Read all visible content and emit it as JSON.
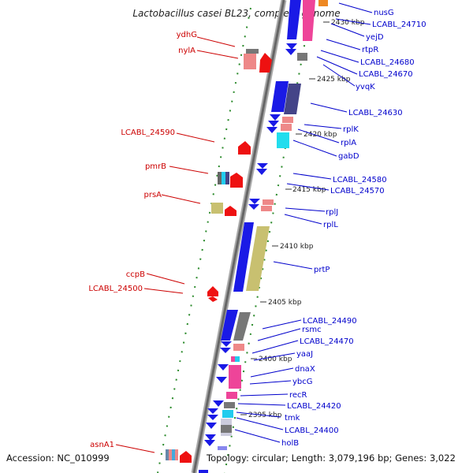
{
  "title": "Lactobacillus casei BL23, complete genome",
  "footer": {
    "accession": "Accession: NC_010999",
    "topology": "Topology: circular; Length: 3,079,196 bp; Genes: 3,022"
  },
  "kbp_labels": [
    "2430 kbp",
    "2425 kbp",
    "2420 kbp",
    "2415 kbp",
    "2410 kbp",
    "2405 kbp",
    "2400 kbp",
    "2395 kbp"
  ],
  "left_labels": [
    "ydhG",
    "nylA",
    "LCABL_24590",
    "pmrB",
    "prsA",
    "ccpB",
    "LCABL_24500",
    "asnA1"
  ],
  "right_labels": [
    "nusG",
    "LCABL_24710",
    "yejD",
    "rtpR",
    "LCABL_24680",
    "LCABL_24670",
    "yvqK",
    "LCABL_24630",
    "rplK",
    "rplA",
    "gabD",
    "LCABL_24580",
    "LCABL_24570",
    "rplJ",
    "rplL",
    "prtP",
    "LCABL_24490",
    "rsmc",
    "LCABL_24470",
    "yaaJ",
    "dnaX",
    "ybcG",
    "recR",
    "LCABL_24420",
    "tmk",
    "LCABL_24400",
    "holB"
  ],
  "colors": {
    "label_left": "#cc0000",
    "label_right": "#0000cc",
    "backbone": "#888888",
    "dots": "#2a8a2a",
    "blue": "#1a1ae6",
    "red": "#ee1111",
    "olive": "#c8c070",
    "pink": "#ee4499",
    "cyan": "#22ccee",
    "slate": "#444488",
    "grey": "#777777",
    "salmon": "#ee8888"
  }
}
